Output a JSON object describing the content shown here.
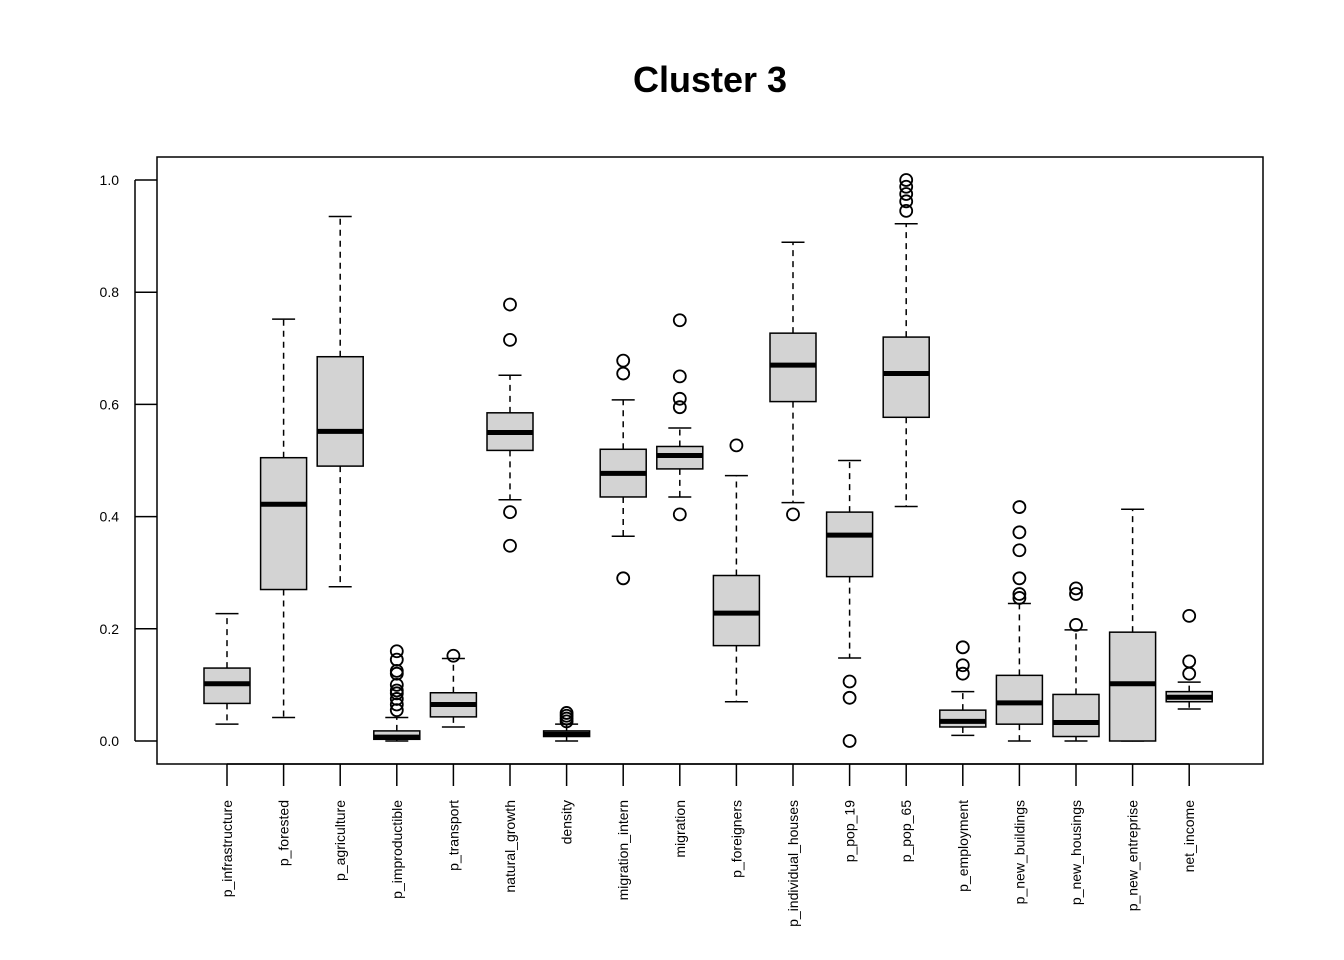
{
  "chart_data": {
    "type": "boxplot",
    "title": "Cluster 3",
    "xlabel": "",
    "ylabel": "",
    "ylim": [
      -0.04,
      1.04
    ],
    "yticks": [
      "0.0",
      "0.2",
      "0.4",
      "0.6",
      "0.8",
      "1.0"
    ],
    "grid": false,
    "box_fill": "#d3d3d3",
    "line_color": "#000000",
    "series": [
      {
        "category": "p_infrastructure",
        "min": 0.03,
        "q1": 0.067,
        "median": 0.102,
        "q3": 0.13,
        "max": 0.227,
        "outliers": []
      },
      {
        "category": "p_forested",
        "min": 0.042,
        "q1": 0.27,
        "median": 0.422,
        "q3": 0.505,
        "max": 0.752,
        "outliers": []
      },
      {
        "category": "p_agriculture",
        "min": 0.275,
        "q1": 0.49,
        "median": 0.552,
        "q3": 0.685,
        "max": 0.935,
        "outliers": []
      },
      {
        "category": "p_improductible",
        "min": 0.0,
        "q1": 0.003,
        "median": 0.007,
        "q3": 0.018,
        "max": 0.042,
        "outliers": [
          0.055,
          0.065,
          0.075,
          0.085,
          0.09,
          0.1,
          0.12,
          0.125,
          0.145,
          0.16
        ]
      },
      {
        "category": "p_transport",
        "min": 0.025,
        "q1": 0.043,
        "median": 0.065,
        "q3": 0.086,
        "max": 0.147,
        "outliers": [
          0.152
        ]
      },
      {
        "category": "natural_growth",
        "min": 0.43,
        "q1": 0.518,
        "median": 0.55,
        "q3": 0.585,
        "max": 0.652,
        "outliers": [
          0.348,
          0.408,
          0.715,
          0.778
        ]
      },
      {
        "category": "density",
        "min": 0.0,
        "q1": 0.008,
        "median": 0.012,
        "q3": 0.018,
        "max": 0.03,
        "outliers": [
          0.035,
          0.04,
          0.045,
          0.05
        ]
      },
      {
        "category": "migration_intern",
        "min": 0.365,
        "q1": 0.435,
        "median": 0.477,
        "q3": 0.52,
        "max": 0.608,
        "outliers": [
          0.29,
          0.655,
          0.678
        ]
      },
      {
        "category": "migration",
        "min": 0.435,
        "q1": 0.485,
        "median": 0.509,
        "q3": 0.525,
        "max": 0.558,
        "outliers": [
          0.404,
          0.595,
          0.61,
          0.65,
          0.75
        ]
      },
      {
        "category": "p_foreigners",
        "min": 0.07,
        "q1": 0.17,
        "median": 0.228,
        "q3": 0.295,
        "max": 0.473,
        "outliers": [
          0.527
        ]
      },
      {
        "category": "p_individual_houses",
        "min": 0.425,
        "q1": 0.605,
        "median": 0.67,
        "q3": 0.727,
        "max": 0.889,
        "outliers": [
          0.404
        ]
      },
      {
        "category": "p_pop_19",
        "min": 0.148,
        "q1": 0.293,
        "median": 0.367,
        "q3": 0.408,
        "max": 0.5,
        "outliers": [
          0.0,
          0.077,
          0.106
        ]
      },
      {
        "category": "p_pop_65",
        "min": 0.418,
        "q1": 0.577,
        "median": 0.655,
        "q3": 0.72,
        "max": 0.922,
        "outliers": [
          0.945,
          0.962,
          0.975,
          0.988,
          1.0
        ]
      },
      {
        "category": "p_employment",
        "min": 0.01,
        "q1": 0.025,
        "median": 0.035,
        "q3": 0.055,
        "max": 0.088,
        "outliers": [
          0.12,
          0.135,
          0.167
        ]
      },
      {
        "category": "p_new_buildings",
        "min": 0.0,
        "q1": 0.03,
        "median": 0.068,
        "q3": 0.117,
        "max": 0.245,
        "outliers": [
          0.255,
          0.262,
          0.29,
          0.34,
          0.372,
          0.417
        ]
      },
      {
        "category": "p_new_housings",
        "min": 0.0,
        "q1": 0.008,
        "median": 0.033,
        "q3": 0.083,
        "max": 0.198,
        "outliers": [
          0.207,
          0.262,
          0.272
        ]
      },
      {
        "category": "p_new_entreprise",
        "min": 0.0,
        "q1": 0.0,
        "median": 0.102,
        "q3": 0.194,
        "max": 0.413,
        "outliers": []
      },
      {
        "category": "net_income",
        "min": 0.057,
        "q1": 0.07,
        "median": 0.078,
        "q3": 0.088,
        "max": 0.105,
        "outliers": [
          0.12,
          0.142,
          0.223
        ]
      }
    ]
  }
}
